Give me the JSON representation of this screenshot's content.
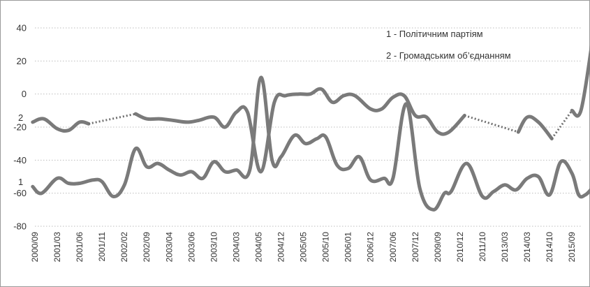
{
  "chart_data": {
    "type": "line",
    "categories": [
      "2000/09",
      "2001/03",
      "2001/06",
      "2001/11",
      "2002/02",
      "2002/09",
      "2003/04",
      "2003/06",
      "2003/10",
      "2004/03",
      "2004/05",
      "2004/12",
      "2005/05",
      "2005/10",
      "2006/01",
      "2006/12",
      "2007/06",
      "2007/12",
      "2009/09",
      "2010/12",
      "2011/10",
      "2013/03",
      "2014/03",
      "2014/10",
      "2015/09"
    ],
    "yticks": [
      -80,
      -60,
      -40,
      -20,
      0,
      20,
      40
    ],
    "ylim": [
      -80,
      40
    ],
    "x_range": [
      0,
      24.4
    ],
    "grid": true,
    "legend": {
      "position": "top-right",
      "items": [
        "1 -  Політичним партіям",
        "2 -  Громадським об’єднанням"
      ]
    },
    "series_labels": [
      "1",
      "2"
    ],
    "series": [
      {
        "id": "1",
        "segments": [
          [
            [
              -0.1,
              -56
            ],
            [
              0.3,
              -60
            ],
            [
              1,
              -51
            ],
            [
              1.5,
              -54
            ],
            [
              2,
              -54
            ],
            [
              2.6,
              -52
            ],
            [
              3,
              -53
            ],
            [
              3.5,
              -62
            ],
            [
              4,
              -55
            ],
            [
              4.5,
              -33
            ],
            [
              5,
              -44
            ],
            [
              5.5,
              -42
            ],
            [
              6,
              -46
            ],
            [
              6.5,
              -49
            ],
            [
              7,
              -47
            ],
            [
              7.5,
              -51
            ],
            [
              8,
              -41
            ],
            [
              8.5,
              -47
            ],
            [
              9,
              -46
            ],
            [
              9.6,
              -46
            ],
            [
              10.1,
              10
            ],
            [
              10.6,
              -40
            ],
            [
              11,
              -38
            ],
            [
              11.6,
              -25
            ],
            [
              12.1,
              -30
            ],
            [
              12.6,
              -27
            ],
            [
              13,
              -26
            ],
            [
              13.5,
              -43
            ],
            [
              14,
              -45
            ],
            [
              14.5,
              -38
            ],
            [
              15,
              -52
            ],
            [
              15.6,
              -51
            ],
            [
              16,
              -51
            ],
            [
              16.6,
              -6
            ],
            [
              17.2,
              -57
            ],
            [
              17.8,
              -70
            ],
            [
              18.3,
              -60
            ],
            [
              18.6,
              -59
            ],
            [
              19.3,
              -42
            ],
            [
              20,
              -62
            ],
            [
              20.5,
              -59
            ],
            [
              21,
              -55
            ],
            [
              21.5,
              -58
            ],
            [
              22,
              -51
            ],
            [
              22.5,
              -50
            ],
            [
              23,
              -61
            ],
            [
              23.5,
              -41
            ],
            [
              24,
              -48
            ],
            [
              24.3,
              -61
            ],
            [
              24.6,
              -61
            ],
            [
              24.9,
              -57
            ]
          ]
        ]
      },
      {
        "id": "2",
        "segments": [
          [
            [
              -0.1,
              -17
            ],
            [
              0.4,
              -15
            ],
            [
              1,
              -21
            ],
            [
              1.5,
              -22
            ],
            [
              2,
              -17
            ],
            [
              2.4,
              -18
            ]
          ],
          [
            [
              4.5,
              -12
            ],
            [
              5,
              -15
            ],
            [
              5.6,
              -15
            ],
            [
              6.2,
              -16
            ],
            [
              6.8,
              -17
            ],
            [
              7.3,
              -16
            ],
            [
              8,
              -14
            ],
            [
              8.5,
              -20
            ],
            [
              9,
              -11
            ],
            [
              9.5,
              -11
            ],
            [
              10.1,
              -47
            ],
            [
              10.7,
              -5
            ],
            [
              11.2,
              -1
            ],
            [
              11.8,
              0
            ],
            [
              12.3,
              0
            ],
            [
              12.8,
              3
            ],
            [
              13.3,
              -5
            ],
            [
              13.8,
              -1
            ],
            [
              14.3,
              -1
            ],
            [
              15,
              -9
            ],
            [
              15.5,
              -9
            ],
            [
              16,
              -2
            ],
            [
              16.5,
              -1
            ],
            [
              17,
              -13
            ],
            [
              17.5,
              -14
            ],
            [
              18,
              -23
            ],
            [
              18.5,
              -23
            ],
            [
              19.2,
              -13
            ]
          ],
          [
            [
              21.6,
              -23
            ],
            [
              22,
              -14
            ],
            [
              22.5,
              -17
            ],
            [
              23.1,
              -27
            ]
          ],
          [
            [
              24,
              -10
            ],
            [
              24.4,
              -10
            ],
            [
              24.9,
              31
            ]
          ]
        ],
        "dotted_gaps": [
          [
            [
              2.4,
              -18
            ],
            [
              4.5,
              -12
            ]
          ],
          [
            [
              19.2,
              -13
            ],
            [
              21.6,
              -23
            ]
          ],
          [
            [
              23.1,
              -27
            ],
            [
              24,
              -10
            ]
          ]
        ]
      }
    ]
  }
}
